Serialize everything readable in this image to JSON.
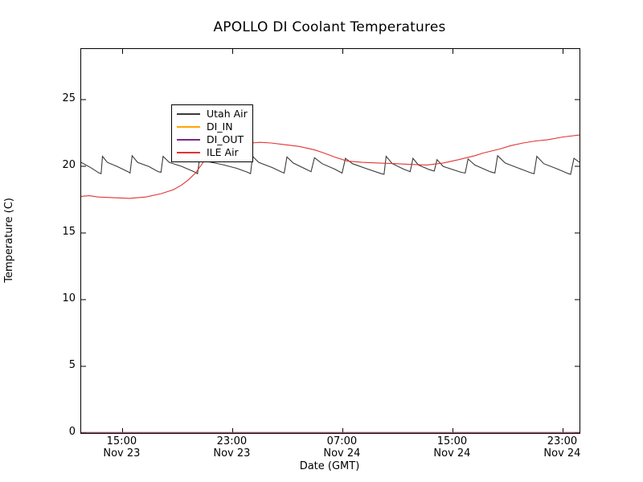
{
  "figure": {
    "title": "APOLLO DI Coolant Temperatures"
  },
  "chart_data": {
    "type": "line",
    "title": "APOLLO DI Coolant Temperatures",
    "xlabel": "Date (GMT)",
    "ylabel": "Temperature (C)",
    "x_unit": "hours since Nov 23 12:00 GMT",
    "xlim": [
      0,
      36.2
    ],
    "ylim": [
      0,
      28.8
    ],
    "grid": false,
    "legend_position": "upper left",
    "x_ticks": [
      {
        "t": 3,
        "time": "15:00",
        "date": "Nov 23"
      },
      {
        "t": 11,
        "time": "23:00",
        "date": "Nov 23"
      },
      {
        "t": 19,
        "time": "07:00",
        "date": "Nov 24"
      },
      {
        "t": 27,
        "time": "15:00",
        "date": "Nov 24"
      },
      {
        "t": 35,
        "time": "23:00",
        "date": "Nov 24"
      }
    ],
    "y_ticks": [
      0,
      5,
      10,
      15,
      20,
      25
    ],
    "series": [
      {
        "name": "Utah Air",
        "color": "#3a3a3a",
        "points": [
          [
            0,
            20.3
          ],
          [
            0.7,
            19.9
          ],
          [
            1.3,
            19.5
          ],
          [
            1.45,
            19.45
          ],
          [
            1.55,
            20.75
          ],
          [
            1.9,
            20.3
          ],
          [
            2.6,
            20.0
          ],
          [
            3.4,
            19.6
          ],
          [
            3.55,
            19.5
          ],
          [
            3.7,
            20.8
          ],
          [
            4.1,
            20.3
          ],
          [
            4.9,
            20.0
          ],
          [
            5.6,
            19.6
          ],
          [
            5.8,
            19.55
          ],
          [
            5.95,
            20.75
          ],
          [
            6.4,
            20.3
          ],
          [
            7.3,
            20.0
          ],
          [
            8.2,
            19.6
          ],
          [
            8.45,
            19.45
          ],
          [
            8.6,
            20.55
          ],
          [
            9.2,
            20.35
          ],
          [
            10.2,
            20.15
          ],
          [
            11.3,
            19.85
          ],
          [
            12.1,
            19.55
          ],
          [
            12.3,
            19.45
          ],
          [
            12.45,
            20.75
          ],
          [
            12.9,
            20.3
          ],
          [
            13.9,
            19.9
          ],
          [
            14.6,
            19.55
          ],
          [
            14.75,
            19.5
          ],
          [
            14.95,
            20.7
          ],
          [
            15.4,
            20.25
          ],
          [
            16.4,
            19.75
          ],
          [
            16.7,
            19.6
          ],
          [
            16.95,
            20.65
          ],
          [
            17.5,
            20.2
          ],
          [
            18.4,
            19.8
          ],
          [
            18.95,
            19.5
          ],
          [
            19.2,
            20.6
          ],
          [
            19.7,
            20.2
          ],
          [
            20.8,
            19.8
          ],
          [
            21.8,
            19.45
          ],
          [
            22.0,
            19.4
          ],
          [
            22.15,
            20.75
          ],
          [
            22.6,
            20.2
          ],
          [
            23.4,
            19.8
          ],
          [
            23.9,
            19.6
          ],
          [
            24.1,
            20.6
          ],
          [
            24.5,
            20.1
          ],
          [
            25.3,
            19.75
          ],
          [
            25.65,
            19.65
          ],
          [
            25.85,
            20.5
          ],
          [
            26.3,
            20.0
          ],
          [
            27.6,
            19.55
          ],
          [
            27.9,
            19.5
          ],
          [
            28.1,
            20.55
          ],
          [
            28.6,
            20.1
          ],
          [
            29.7,
            19.6
          ],
          [
            30.05,
            19.5
          ],
          [
            30.25,
            20.8
          ],
          [
            30.8,
            20.25
          ],
          [
            31.8,
            19.85
          ],
          [
            32.7,
            19.5
          ],
          [
            32.9,
            19.45
          ],
          [
            33.1,
            20.75
          ],
          [
            33.6,
            20.2
          ],
          [
            34.6,
            19.8
          ],
          [
            35.4,
            19.45
          ],
          [
            35.55,
            19.4
          ],
          [
            35.8,
            20.6
          ],
          [
            36.0,
            20.45
          ],
          [
            36.2,
            20.3
          ]
        ]
      },
      {
        "name": "DI_IN",
        "color": "#ffa500",
        "points": [
          [
            0,
            0
          ],
          [
            36.2,
            0
          ]
        ]
      },
      {
        "name": "DI_OUT",
        "color": "#7a2a8a",
        "points": [
          [
            0,
            0
          ],
          [
            36.2,
            0
          ]
        ]
      },
      {
        "name": "ILE Air",
        "color": "#e23333",
        "points": [
          [
            0,
            17.75
          ],
          [
            0.6,
            17.8
          ],
          [
            1.2,
            17.7
          ],
          [
            2.3,
            17.65
          ],
          [
            3.5,
            17.6
          ],
          [
            4.7,
            17.7
          ],
          [
            5.8,
            17.95
          ],
          [
            6.7,
            18.25
          ],
          [
            7.3,
            18.6
          ],
          [
            7.8,
            19.0
          ],
          [
            8.3,
            19.5
          ],
          [
            8.8,
            20.2
          ],
          [
            9.2,
            20.9
          ],
          [
            9.55,
            21.5
          ],
          [
            9.8,
            21.45
          ],
          [
            10.1,
            21.35
          ],
          [
            10.6,
            21.5
          ],
          [
            11.3,
            21.6
          ],
          [
            12.3,
            21.75
          ],
          [
            13.0,
            21.8
          ],
          [
            13.8,
            21.75
          ],
          [
            14.6,
            21.65
          ],
          [
            15.8,
            21.5
          ],
          [
            16.9,
            21.25
          ],
          [
            17.5,
            21.05
          ],
          [
            18.4,
            20.7
          ],
          [
            19.3,
            20.4
          ],
          [
            20.4,
            20.3
          ],
          [
            21.6,
            20.25
          ],
          [
            22.8,
            20.2
          ],
          [
            23.9,
            20.15
          ],
          [
            25.1,
            20.1
          ],
          [
            26.3,
            20.25
          ],
          [
            27.4,
            20.5
          ],
          [
            28.6,
            20.8
          ],
          [
            29.2,
            21.0
          ],
          [
            30.4,
            21.3
          ],
          [
            31.2,
            21.55
          ],
          [
            32.1,
            21.75
          ],
          [
            33.0,
            21.9
          ],
          [
            33.9,
            22.0
          ],
          [
            35.0,
            22.2
          ],
          [
            36.2,
            22.35
          ]
        ]
      }
    ]
  }
}
